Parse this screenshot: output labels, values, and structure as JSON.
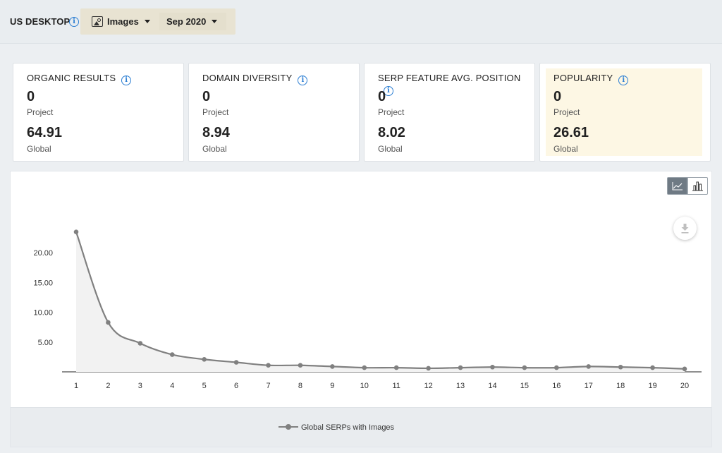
{
  "header": {
    "title": "US DESKTOP",
    "info_icon": "i",
    "type_selector": "Images",
    "date_selector": "Sep 2020"
  },
  "cards": [
    {
      "label": "ORGANIC RESULTS",
      "info": "i",
      "project_value": "0",
      "project_label": "Project",
      "global_value": "64.91",
      "global_label": "Global"
    },
    {
      "label": "DOMAIN DIVERSITY",
      "info": "i",
      "project_value": "0",
      "project_label": "Project",
      "global_value": "8.94",
      "global_label": "Global"
    },
    {
      "label": "SERP FEATURE AVG. POSITION",
      "info": "i",
      "project_value": "0",
      "project_label": "Project",
      "global_value": "8.02",
      "global_label": "Global"
    },
    {
      "label": "POPULARITY",
      "info": "i",
      "project_value": "0",
      "project_label": "Project",
      "global_value": "26.61",
      "global_label": "Global",
      "highlight": "#fdf7e4"
    }
  ],
  "chart_data": {
    "type": "area",
    "x": [
      1,
      2,
      3,
      4,
      5,
      6,
      7,
      8,
      9,
      10,
      11,
      12,
      13,
      14,
      15,
      16,
      17,
      18,
      19,
      20
    ],
    "series": [
      {
        "name": "Global SERPs with Images",
        "values": [
          23.5,
          8.3,
          4.8,
          2.9,
          2.1,
          1.6,
          1.1,
          1.1,
          0.9,
          0.7,
          0.7,
          0.6,
          0.7,
          0.8,
          0.7,
          0.7,
          0.9,
          0.8,
          0.7,
          0.5
        ],
        "color": "#808080"
      }
    ],
    "yticks": [
      "5.00",
      "10.00",
      "15.00",
      "20.00"
    ],
    "ylim": [
      0,
      25
    ],
    "legend": "bottom-center",
    "grid": false
  },
  "controls": {
    "line_toggle_icon": "line-chart-icon",
    "bar_toggle_icon": "bar-chart-icon",
    "download_icon": "download-icon"
  }
}
